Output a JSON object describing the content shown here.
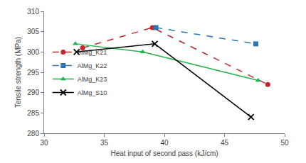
{
  "chart_data": {
    "type": "line",
    "x_label": "Heat input of second pass (kJ/cm)",
    "y_label": "Tensile strength (MPa)",
    "xlim": [
      30,
      50
    ],
    "xticks": [
      30,
      35,
      40,
      45,
      50
    ],
    "ylim": [
      280,
      310
    ],
    "yticks": [
      280,
      285,
      290,
      295,
      300,
      305,
      310
    ],
    "grid": false,
    "legend": "left",
    "series": [
      {
        "name": "AlMg_K21",
        "color": "#c0282d",
        "marker": "circle",
        "line_style": "dash",
        "x": [
          33.2,
          39.0,
          48.6
        ],
        "values": [
          301,
          306,
          292
        ]
      },
      {
        "name": "AlMg_K22",
        "color": "#2e75b6",
        "marker": "square",
        "line_style": "dash",
        "x": [
          39.3,
          47.6
        ],
        "values": [
          306,
          302
        ]
      },
      {
        "name": "AlMg_K23",
        "color": "#22b14c",
        "marker": "triangle",
        "line_style": "solid",
        "x": [
          32.6,
          38.2,
          47.8
        ],
        "values": [
          302,
          300,
          293
        ]
      },
      {
        "name": "AlMg_S10",
        "color": "#000000",
        "marker": "x",
        "line_style": "solid",
        "x": [
          32.7,
          39.2,
          47.2
        ],
        "values": [
          300,
          302,
          284
        ]
      }
    ]
  }
}
